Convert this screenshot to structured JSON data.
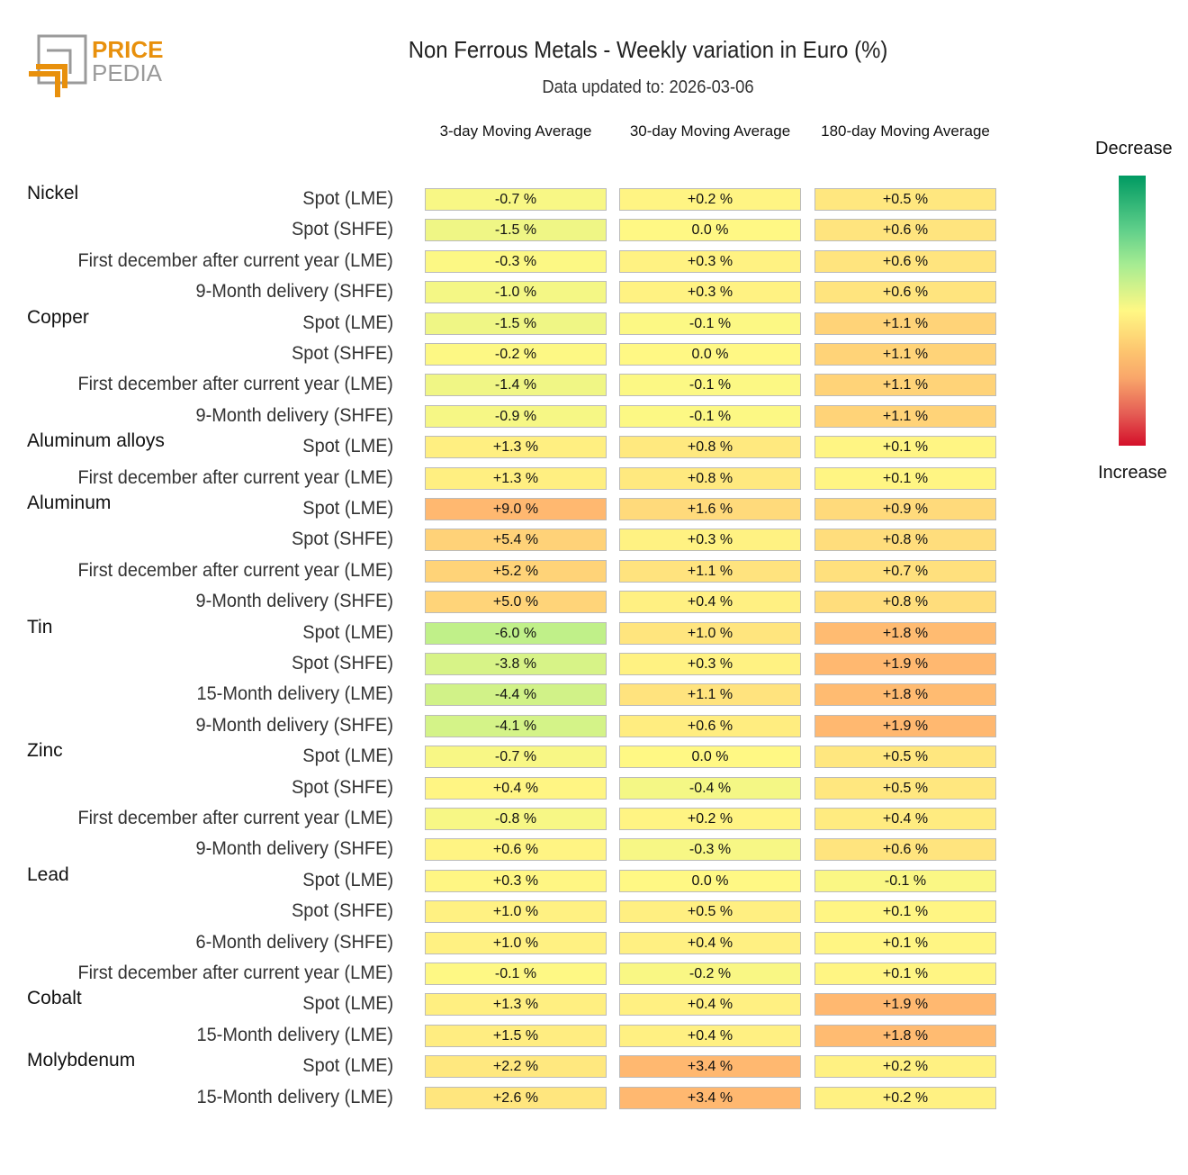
{
  "logo_text": "PRICE PEDIA",
  "chart_data": {
    "type": "heatmap",
    "title": "Non Ferrous Metals - Weekly variation in Euro (%)",
    "subtitle": "Data updated to: 2026-03-06",
    "columns": [
      "3-day Moving Average",
      "30-day Moving Average",
      "180-day Moving Average"
    ],
    "unit": "%",
    "legend": {
      "top": "Decrease",
      "bottom": "Increase",
      "colors": [
        "#009a62",
        "#fff884",
        "#d4102a"
      ]
    },
    "groups": [
      {
        "name": "Nickel",
        "rows": [
          {
            "label": "Spot (LME)",
            "values": [
              -0.7,
              0.2,
              0.5
            ]
          },
          {
            "label": "Spot (SHFE)",
            "values": [
              -1.5,
              0.0,
              0.6
            ]
          },
          {
            "label": "First december after current year (LME)",
            "values": [
              -0.3,
              0.3,
              0.6
            ]
          },
          {
            "label": "9-Month delivery (SHFE)",
            "values": [
              -1.0,
              0.3,
              0.6
            ]
          }
        ]
      },
      {
        "name": "Copper",
        "rows": [
          {
            "label": "Spot (LME)",
            "values": [
              -1.5,
              -0.1,
              1.1
            ]
          },
          {
            "label": "Spot (SHFE)",
            "values": [
              -0.2,
              0.0,
              1.1
            ]
          },
          {
            "label": "First december after current year (LME)",
            "values": [
              -1.4,
              -0.1,
              1.1
            ]
          },
          {
            "label": "9-Month delivery (SHFE)",
            "values": [
              -0.9,
              -0.1,
              1.1
            ]
          }
        ]
      },
      {
        "name": "Aluminum alloys",
        "rows": [
          {
            "label": "Spot (LME)",
            "values": [
              1.3,
              0.8,
              0.1
            ]
          },
          {
            "label": "First december after current year (LME)",
            "values": [
              1.3,
              0.8,
              0.1
            ]
          }
        ]
      },
      {
        "name": "Aluminum",
        "rows": [
          {
            "label": "Spot (LME)",
            "values": [
              9.0,
              1.6,
              0.9
            ]
          },
          {
            "label": "Spot (SHFE)",
            "values": [
              5.4,
              0.3,
              0.8
            ]
          },
          {
            "label": "First december after current year (LME)",
            "values": [
              5.2,
              1.1,
              0.7
            ]
          },
          {
            "label": "9-Month delivery (SHFE)",
            "values": [
              5.0,
              0.4,
              0.8
            ]
          }
        ]
      },
      {
        "name": "Tin",
        "rows": [
          {
            "label": "Spot (LME)",
            "values": [
              -6.0,
              1.0,
              1.8
            ]
          },
          {
            "label": "Spot (SHFE)",
            "values": [
              -3.8,
              0.3,
              1.9
            ]
          },
          {
            "label": "15-Month delivery (LME)",
            "values": [
              -4.4,
              1.1,
              1.8
            ]
          },
          {
            "label": "9-Month delivery (SHFE)",
            "values": [
              -4.1,
              0.6,
              1.9
            ]
          }
        ]
      },
      {
        "name": "Zinc",
        "rows": [
          {
            "label": "Spot (LME)",
            "values": [
              -0.7,
              0.0,
              0.5
            ]
          },
          {
            "label": "Spot (SHFE)",
            "values": [
              0.4,
              -0.4,
              0.5
            ]
          },
          {
            "label": "First december after current year (LME)",
            "values": [
              -0.8,
              0.2,
              0.4
            ]
          },
          {
            "label": "9-Month delivery (SHFE)",
            "values": [
              0.6,
              -0.3,
              0.6
            ]
          }
        ]
      },
      {
        "name": "Lead",
        "rows": [
          {
            "label": "Spot (LME)",
            "values": [
              0.3,
              0.0,
              -0.1
            ]
          },
          {
            "label": "Spot (SHFE)",
            "values": [
              1.0,
              0.5,
              0.1
            ]
          },
          {
            "label": "6-Month delivery (SHFE)",
            "values": [
              1.0,
              0.4,
              0.1
            ]
          },
          {
            "label": "First december after current year (LME)",
            "values": [
              -0.1,
              -0.2,
              0.1
            ]
          }
        ]
      },
      {
        "name": "Cobalt",
        "rows": [
          {
            "label": "Spot (LME)",
            "values": [
              1.3,
              0.4,
              1.9
            ]
          },
          {
            "label": "15-Month delivery (LME)",
            "values": [
              1.5,
              0.4,
              1.8
            ]
          }
        ]
      },
      {
        "name": "Molybdenum",
        "rows": [
          {
            "label": "Spot (LME)",
            "values": [
              2.2,
              3.4,
              0.2
            ]
          },
          {
            "label": "15-Month delivery (LME)",
            "values": [
              2.6,
              3.4,
              0.2
            ]
          }
        ]
      }
    ]
  }
}
